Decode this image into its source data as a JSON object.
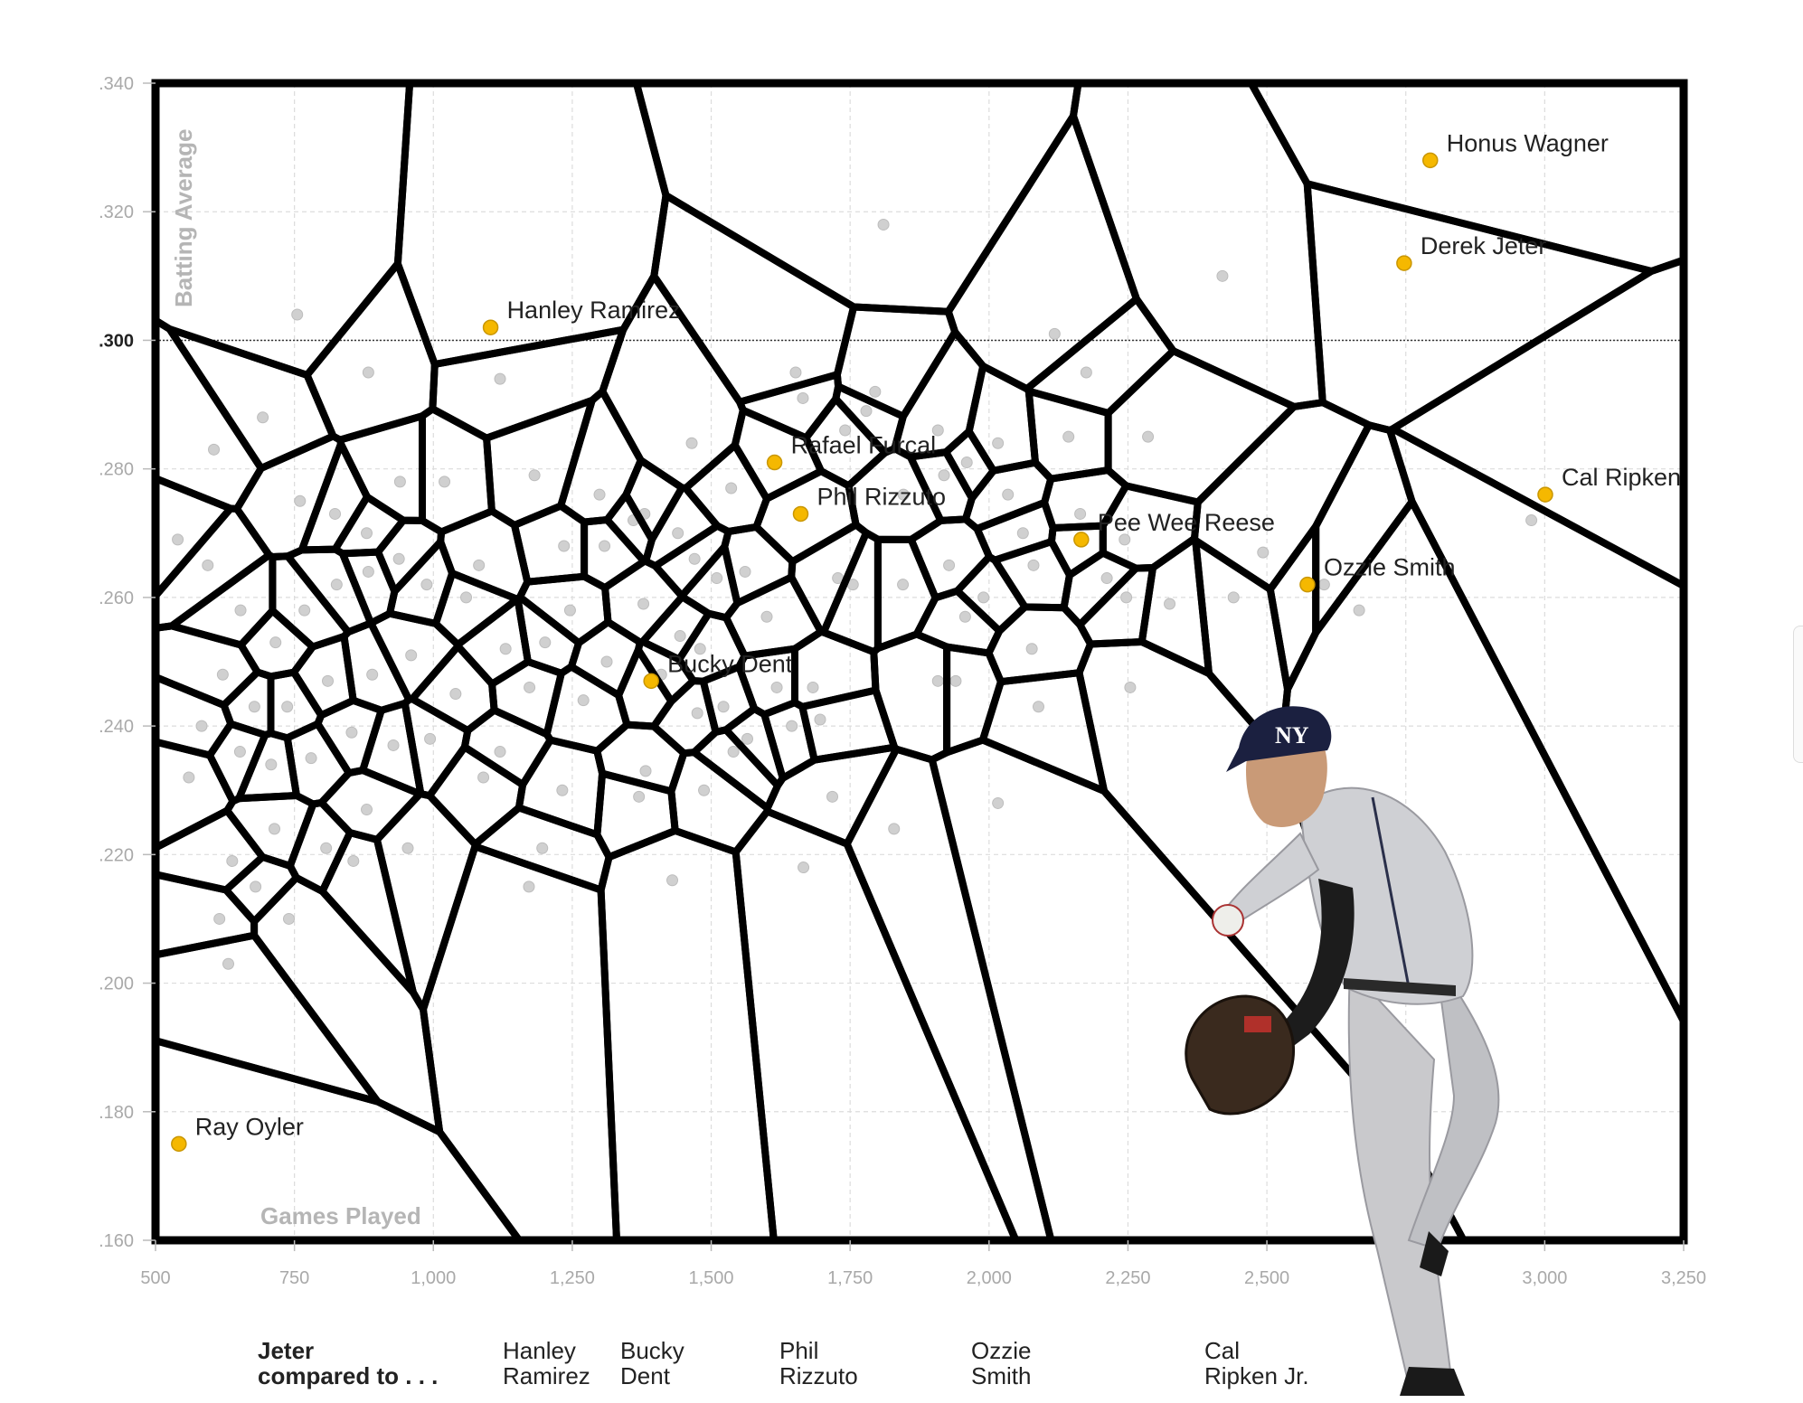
{
  "chart_data": {
    "type": "scatter",
    "title": "",
    "xlabel": "Games Played",
    "ylabel": "Batting Average",
    "xlim": [
      500,
      3250
    ],
    "ylim": [
      0.16,
      0.34
    ],
    "x_ticks": [
      500,
      750,
      1000,
      1250,
      1500,
      1750,
      2000,
      2250,
      2500,
      2750,
      3000,
      3250
    ],
    "x_tick_labels": [
      "500",
      "750",
      "1,000",
      "1,250",
      "1,500",
      "1,750",
      "2,000",
      "2,250",
      "2,500",
      "2,750",
      "3,000",
      "3,250"
    ],
    "y_ticks": [
      0.16,
      0.18,
      0.2,
      0.22,
      0.24,
      0.26,
      0.28,
      0.3,
      0.32,
      0.34
    ],
    "y_tick_labels": [
      ".160",
      ".180",
      ".200",
      ".220",
      ".240",
      ".260",
      ".280",
      ".300",
      ".320",
      ".340"
    ],
    "reference_line": 0.3,
    "grid": true,
    "highlighted": [
      {
        "name": "Honus Wagner",
        "x": 2794,
        "y": 0.328
      },
      {
        "name": "Derek Jeter",
        "x": 2747,
        "y": 0.312
      },
      {
        "name": "Hanley Ramirez",
        "x": 1103,
        "y": 0.302
      },
      {
        "name": "Rafael Furcal",
        "x": 1614,
        "y": 0.281
      },
      {
        "name": "Phil Rizzuto",
        "x": 1661,
        "y": 0.273
      },
      {
        "name": "Pee Wee Reese",
        "x": 2166,
        "y": 0.269
      },
      {
        "name": "Ozzie Smith",
        "x": 2573,
        "y": 0.262
      },
      {
        "name": "Cal Ripken",
        "x": 3001,
        "y": 0.276
      },
      {
        "name": "Bucky Dent",
        "x": 1392,
        "y": 0.247
      },
      {
        "name": "Ray Oyler",
        "x": 542,
        "y": 0.175
      }
    ],
    "others": [
      {
        "x": 1810,
        "y": 0.318
      },
      {
        "x": 2420,
        "y": 0.31
      },
      {
        "x": 2118,
        "y": 0.301
      },
      {
        "x": 755,
        "y": 0.304
      },
      {
        "x": 1120,
        "y": 0.294
      },
      {
        "x": 883,
        "y": 0.295
      },
      {
        "x": 1795,
        "y": 0.292
      },
      {
        "x": 1652,
        "y": 0.295
      },
      {
        "x": 2175,
        "y": 0.295
      },
      {
        "x": 2286,
        "y": 0.285
      },
      {
        "x": 1741,
        "y": 0.286
      },
      {
        "x": 1665,
        "y": 0.291
      },
      {
        "x": 1779,
        "y": 0.289
      },
      {
        "x": 1908,
        "y": 0.286
      },
      {
        "x": 2016,
        "y": 0.284
      },
      {
        "x": 1960,
        "y": 0.281
      },
      {
        "x": 1919,
        "y": 0.279
      },
      {
        "x": 2143,
        "y": 0.285
      },
      {
        "x": 2034,
        "y": 0.276
      },
      {
        "x": 2164,
        "y": 0.273
      },
      {
        "x": 693,
        "y": 0.288
      },
      {
        "x": 605,
        "y": 0.283
      },
      {
        "x": 1020,
        "y": 0.278
      },
      {
        "x": 940,
        "y": 0.278
      },
      {
        "x": 1536,
        "y": 0.277
      },
      {
        "x": 1380,
        "y": 0.273
      },
      {
        "x": 1440,
        "y": 0.27
      },
      {
        "x": 1308,
        "y": 0.268
      },
      {
        "x": 1235,
        "y": 0.268
      },
      {
        "x": 1360,
        "y": 0.272
      },
      {
        "x": 1510,
        "y": 0.263
      },
      {
        "x": 1561,
        "y": 0.264
      },
      {
        "x": 1470,
        "y": 0.266
      },
      {
        "x": 1755,
        "y": 0.262
      },
      {
        "x": 1845,
        "y": 0.262
      },
      {
        "x": 1928,
        "y": 0.265
      },
      {
        "x": 1990,
        "y": 0.26
      },
      {
        "x": 2080,
        "y": 0.265
      },
      {
        "x": 2212,
        "y": 0.263
      },
      {
        "x": 2247,
        "y": 0.26
      },
      {
        "x": 2325,
        "y": 0.259
      },
      {
        "x": 2493,
        "y": 0.267
      },
      {
        "x": 2603,
        "y": 0.262
      },
      {
        "x": 2666,
        "y": 0.258
      },
      {
        "x": 1957,
        "y": 0.257
      },
      {
        "x": 2077,
        "y": 0.252
      },
      {
        "x": 1908,
        "y": 0.247
      },
      {
        "x": 1940,
        "y": 0.247
      },
      {
        "x": 1683,
        "y": 0.246
      },
      {
        "x": 1618,
        "y": 0.246
      },
      {
        "x": 1522,
        "y": 0.243
      },
      {
        "x": 1645,
        "y": 0.24
      },
      {
        "x": 1565,
        "y": 0.238
      },
      {
        "x": 1475,
        "y": 0.242
      },
      {
        "x": 2254,
        "y": 0.246
      },
      {
        "x": 2089,
        "y": 0.243
      },
      {
        "x": 1696,
        "y": 0.241
      },
      {
        "x": 1540,
        "y": 0.236
      },
      {
        "x": 1312,
        "y": 0.25
      },
      {
        "x": 1201,
        "y": 0.253
      },
      {
        "x": 1246,
        "y": 0.258
      },
      {
        "x": 1130,
        "y": 0.252
      },
      {
        "x": 1378,
        "y": 0.259
      },
      {
        "x": 1059,
        "y": 0.26
      },
      {
        "x": 988,
        "y": 0.262
      },
      {
        "x": 938,
        "y": 0.266
      },
      {
        "x": 883,
        "y": 0.264
      },
      {
        "x": 826,
        "y": 0.262
      },
      {
        "x": 768,
        "y": 0.258
      },
      {
        "x": 716,
        "y": 0.253
      },
      {
        "x": 653,
        "y": 0.258
      },
      {
        "x": 594,
        "y": 0.265
      },
      {
        "x": 540,
        "y": 0.269
      },
      {
        "x": 621,
        "y": 0.248
      },
      {
        "x": 583,
        "y": 0.24
      },
      {
        "x": 652,
        "y": 0.236
      },
      {
        "x": 708,
        "y": 0.234
      },
      {
        "x": 780,
        "y": 0.235
      },
      {
        "x": 853,
        "y": 0.239
      },
      {
        "x": 928,
        "y": 0.237
      },
      {
        "x": 994,
        "y": 0.238
      },
      {
        "x": 1120,
        "y": 0.236
      },
      {
        "x": 1232,
        "y": 0.23
      },
      {
        "x": 1382,
        "y": 0.233
      },
      {
        "x": 1487,
        "y": 0.23
      },
      {
        "x": 1718,
        "y": 0.229
      },
      {
        "x": 1829,
        "y": 0.224
      },
      {
        "x": 2016,
        "y": 0.228
      },
      {
        "x": 1666,
        "y": 0.218
      },
      {
        "x": 1430,
        "y": 0.216
      },
      {
        "x": 1196,
        "y": 0.221
      },
      {
        "x": 1172,
        "y": 0.215
      },
      {
        "x": 954,
        "y": 0.221
      },
      {
        "x": 856,
        "y": 0.219
      },
      {
        "x": 714,
        "y": 0.224
      },
      {
        "x": 638,
        "y": 0.219
      },
      {
        "x": 680,
        "y": 0.215
      },
      {
        "x": 740,
        "y": 0.21
      },
      {
        "x": 615,
        "y": 0.21
      },
      {
        "x": 631,
        "y": 0.203
      },
      {
        "x": 880,
        "y": 0.227
      },
      {
        "x": 807,
        "y": 0.221
      },
      {
        "x": 1370,
        "y": 0.229
      },
      {
        "x": 560,
        "y": 0.232
      },
      {
        "x": 1040,
        "y": 0.245
      },
      {
        "x": 1173,
        "y": 0.246
      },
      {
        "x": 1444,
        "y": 0.254
      },
      {
        "x": 2976,
        "y": 0.272
      },
      {
        "x": 2440,
        "y": 0.26
      },
      {
        "x": 1082,
        "y": 0.265
      },
      {
        "x": 1299,
        "y": 0.276
      },
      {
        "x": 1846,
        "y": 0.276
      },
      {
        "x": 2061,
        "y": 0.27
      },
      {
        "x": 2244,
        "y": 0.269
      },
      {
        "x": 1728,
        "y": 0.263
      },
      {
        "x": 1600,
        "y": 0.257
      },
      {
        "x": 1480,
        "y": 0.252
      },
      {
        "x": 1410,
        "y": 0.248
      },
      {
        "x": 1270,
        "y": 0.244
      },
      {
        "x": 1090,
        "y": 0.232
      },
      {
        "x": 960,
        "y": 0.251
      },
      {
        "x": 890,
        "y": 0.248
      },
      {
        "x": 810,
        "y": 0.247
      },
      {
        "x": 737,
        "y": 0.243
      },
      {
        "x": 678,
        "y": 0.243
      },
      {
        "x": 760,
        "y": 0.275
      },
      {
        "x": 823,
        "y": 0.273
      },
      {
        "x": 880,
        "y": 0.27
      },
      {
        "x": 1182,
        "y": 0.279
      },
      {
        "x": 1465,
        "y": 0.284
      }
    ]
  },
  "comparison": {
    "heading": "Jeter\ncompared to . . .",
    "items": [
      "Hanley\nRamirez",
      "Bucky\nDent",
      "Phil\nRizzuto",
      "Ozzie\nSmith",
      "Cal\nRipken Jr."
    ]
  },
  "colors": {
    "highlight": "#f5b800",
    "other_point": "#d0d0d0",
    "cell_stroke": "#000000",
    "grid": "#dcdcdc"
  },
  "icons": [
    "player-photo",
    "scroll-tab"
  ]
}
